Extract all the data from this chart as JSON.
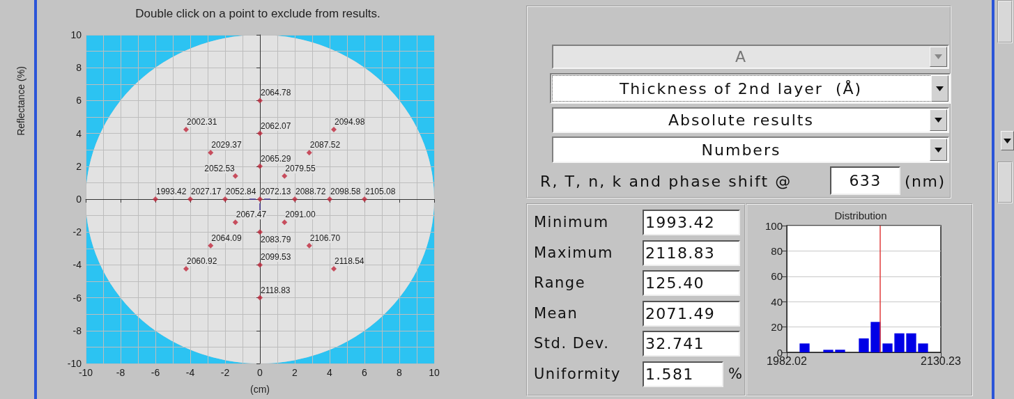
{
  "chart_data": [
    {
      "type": "scatter",
      "title": "Double click on a point to exclude from results.",
      "xlabel": "(cm)",
      "ylabel": "Reflectance (%)",
      "x": [
        0,
        -4.24,
        0,
        4.24,
        -2.83,
        2.83,
        0,
        -1.41,
        1.41,
        -6,
        -4,
        -2,
        0,
        2,
        4,
        6,
        -1.41,
        1.41,
        0,
        -2.83,
        2.83,
        -4.24,
        0,
        4.24,
        0
      ],
      "values": [
        6,
        4.24,
        4,
        4.24,
        2.83,
        2.83,
        2,
        1.41,
        1.41,
        0,
        0,
        0,
        0,
        0,
        0,
        0,
        -1.41,
        -1.41,
        -2,
        -2.83,
        -2.83,
        -4.24,
        -4,
        -4.24,
        -6
      ],
      "color": "#c0283c",
      "marker": "diamond",
      "xlim": [
        -10,
        10
      ],
      "ylim": [
        -10,
        10
      ],
      "xticks": [
        -10,
        -8,
        -6,
        -4,
        -2,
        0,
        2,
        4,
        6,
        8,
        10
      ],
      "yticks": [
        -10,
        -8,
        -6,
        -4,
        -2,
        0,
        2,
        4,
        6,
        8,
        10
      ],
      "grid": true,
      "annotations": [
        {
          "text": "2064.78",
          "x": 0,
          "y": 6
        },
        {
          "text": "2002.31",
          "x": -4.24,
          "y": 4.24
        },
        {
          "text": "2062.07",
          "x": 0,
          "y": 4
        },
        {
          "text": "2094.98",
          "x": 4.24,
          "y": 4.24
        },
        {
          "text": "2029.37",
          "x": -2.83,
          "y": 2.83
        },
        {
          "text": "2087.52",
          "x": 2.83,
          "y": 2.83
        },
        {
          "text": "2065.29",
          "x": 0,
          "y": 2
        },
        {
          "text": "2052.53",
          "x": -1.41,
          "y": 1.41
        },
        {
          "text": "2079.55",
          "x": 1.41,
          "y": 1.41
        },
        {
          "text": "1993.42",
          "x": -6,
          "y": 0
        },
        {
          "text": "2027.17",
          "x": -4,
          "y": 0
        },
        {
          "text": "2052.84",
          "x": -2,
          "y": 0
        },
        {
          "text": "2072.13",
          "x": 0,
          "y": 0
        },
        {
          "text": "2088.72",
          "x": 2,
          "y": 0
        },
        {
          "text": "2098.58",
          "x": 4,
          "y": 0
        },
        {
          "text": "2105.08",
          "x": 6,
          "y": 0
        },
        {
          "text": "2067.47",
          "x": -1.41,
          "y": -1.41
        },
        {
          "text": "2091.00",
          "x": 1.41,
          "y": -1.41
        },
        {
          "text": "2083.79",
          "x": 0,
          "y": -2
        },
        {
          "text": "2064.09",
          "x": -2.83,
          "y": -2.83
        },
        {
          "text": "2106.70",
          "x": 2.83,
          "y": -2.83
        },
        {
          "text": "2060.92",
          "x": -4.24,
          "y": -4.24
        },
        {
          "text": "2099.53",
          "x": 0,
          "y": -4
        },
        {
          "text": "2118.54",
          "x": 4.24,
          "y": -4.24
        },
        {
          "text": "2118.83",
          "x": 0,
          "y": -6
        }
      ]
    },
    {
      "type": "other",
      "annotations": [
        "A",
        "Thickness of 2nd layer  (Å)",
        "Absolute results",
        "Numbers",
        "R, T, n, k and phase shift @",
        "633",
        "(nm)"
      ]
    },
    {
      "type": "other",
      "categories": [
        "Minimum",
        "Maximum",
        "Range",
        "Mean",
        "Std. Dev.",
        "Uniformity"
      ],
      "annotations": [
        "1993.42",
        "2118.83",
        "125.40",
        "2071.49",
        "32.741",
        "1.581",
        "%"
      ]
    },
    {
      "type": "histogram",
      "title": "Distribution",
      "bins": [
        1982.02,
        1993.42,
        2004.82,
        2016.22,
        2027.62,
        2039.02,
        2050.42,
        2061.83,
        2073.23,
        2084.63,
        2096.03,
        2107.43,
        2118.83,
        2130.23
      ],
      "values": [
        0,
        7,
        0,
        2,
        2,
        0,
        11,
        24,
        7,
        15,
        15,
        7,
        0
      ],
      "color": "#0000e6",
      "xlim": [
        1982.02,
        2130.23
      ],
      "xticks": [
        1982.02,
        2130.23
      ],
      "ylim": [
        0,
        100
      ],
      "yticks": [
        0,
        20,
        40,
        60,
        80,
        100
      ],
      "grid": "y",
      "ref_lines": [
        {
          "axis": "x",
          "value": 2071.49,
          "color": "#e03c3c"
        }
      ]
    }
  ]
}
